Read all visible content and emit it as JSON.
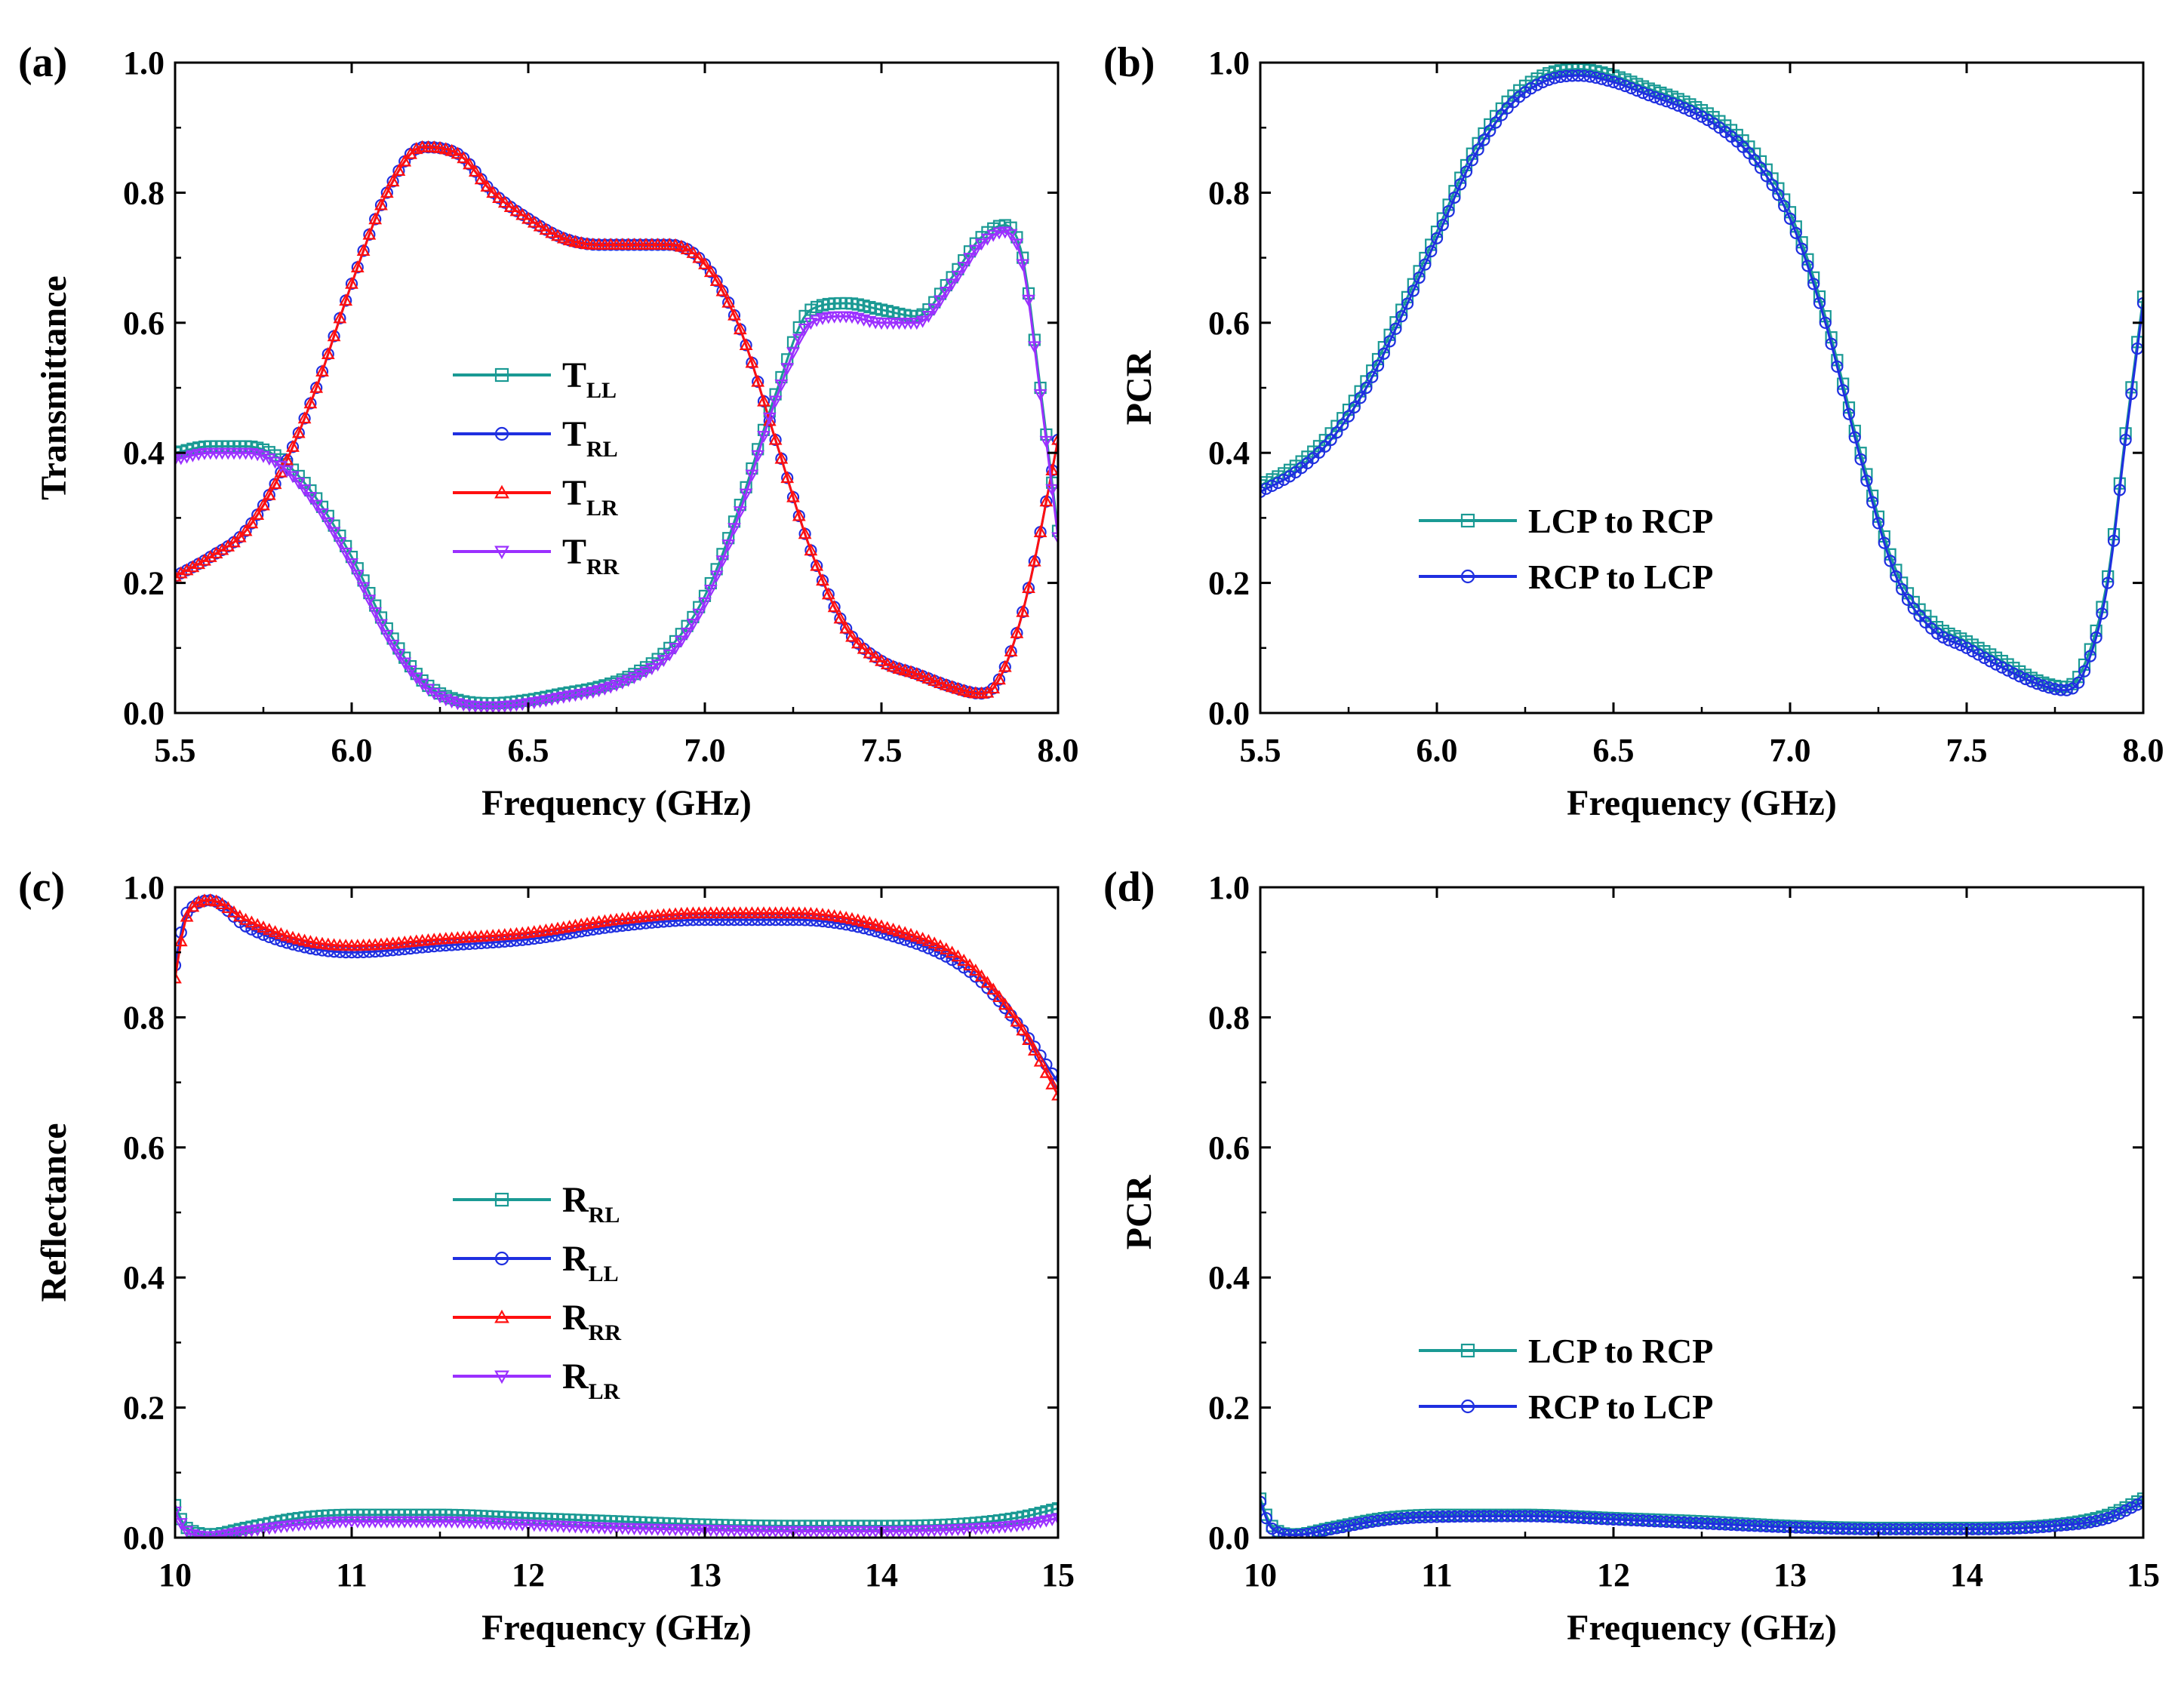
{
  "figure": {
    "panels": [
      "(a)",
      "(b)",
      "(c)",
      "(d)"
    ]
  },
  "chart_data": [
    {
      "id": "a",
      "panel_label": "(a)",
      "type": "line",
      "xlabel": "Frequency (GHz)",
      "ylabel": "Transmittance",
      "xlim": [
        5.5,
        8.0
      ],
      "ylim": [
        0.0,
        1.0
      ],
      "xticks": [
        "5.5",
        "6.0",
        "6.5",
        "7.0",
        "7.5",
        "8.0"
      ],
      "yticks": [
        "0.0",
        "0.2",
        "0.4",
        "0.6",
        "0.8",
        "1.0"
      ],
      "legend_position": "center",
      "series": [
        {
          "name": "T",
          "sub": "LL",
          "color": "#1a9a94",
          "marker": "square",
          "x": [
            5.5,
            5.6,
            5.7,
            5.8,
            5.9,
            6.0,
            6.1,
            6.2,
            6.3,
            6.4,
            6.5,
            6.6,
            6.7,
            6.8,
            6.9,
            7.0,
            7.1,
            7.2,
            7.3,
            7.4,
            7.5,
            7.6,
            7.7,
            7.78,
            7.85,
            7.9,
            7.95,
            8.0
          ],
          "y": [
            0.4,
            0.41,
            0.41,
            0.39,
            0.33,
            0.24,
            0.13,
            0.05,
            0.02,
            0.015,
            0.02,
            0.03,
            0.04,
            0.06,
            0.1,
            0.18,
            0.32,
            0.49,
            0.62,
            0.63,
            0.62,
            0.61,
            0.67,
            0.73,
            0.75,
            0.7,
            0.5,
            0.28
          ]
        },
        {
          "name": "T",
          "sub": "RL",
          "color": "#1f2fe0",
          "marker": "circle",
          "x": [
            5.5,
            5.6,
            5.7,
            5.8,
            5.9,
            6.0,
            6.1,
            6.2,
            6.3,
            6.4,
            6.5,
            6.6,
            6.7,
            6.8,
            6.9,
            7.0,
            7.1,
            7.2,
            7.3,
            7.4,
            7.5,
            7.6,
            7.7,
            7.78,
            7.82,
            7.87,
            7.92,
            8.0
          ],
          "y": [
            0.21,
            0.24,
            0.28,
            0.37,
            0.5,
            0.66,
            0.8,
            0.87,
            0.86,
            0.8,
            0.76,
            0.73,
            0.72,
            0.72,
            0.72,
            0.69,
            0.59,
            0.42,
            0.25,
            0.13,
            0.08,
            0.06,
            0.04,
            0.03,
            0.04,
            0.1,
            0.2,
            0.42
          ]
        },
        {
          "name": "T",
          "sub": "LR",
          "color": "#ff1010",
          "marker": "triangle-up",
          "x": [
            5.5,
            5.6,
            5.7,
            5.8,
            5.9,
            6.0,
            6.1,
            6.2,
            6.3,
            6.4,
            6.5,
            6.6,
            6.7,
            6.8,
            6.9,
            7.0,
            7.1,
            7.2,
            7.3,
            7.4,
            7.5,
            7.6,
            7.7,
            7.78,
            7.82,
            7.87,
            7.92,
            8.0
          ],
          "y": [
            0.21,
            0.24,
            0.28,
            0.37,
            0.5,
            0.66,
            0.8,
            0.87,
            0.86,
            0.8,
            0.76,
            0.73,
            0.72,
            0.72,
            0.72,
            0.69,
            0.59,
            0.42,
            0.25,
            0.13,
            0.08,
            0.06,
            0.04,
            0.03,
            0.04,
            0.1,
            0.2,
            0.42
          ]
        },
        {
          "name": "T",
          "sub": "RR",
          "color": "#9b30ff",
          "marker": "triangle-down",
          "x": [
            5.5,
            5.6,
            5.7,
            5.8,
            5.9,
            6.0,
            6.1,
            6.2,
            6.3,
            6.4,
            6.5,
            6.6,
            6.7,
            6.8,
            6.9,
            7.0,
            7.1,
            7.2,
            7.3,
            7.4,
            7.5,
            7.6,
            7.7,
            7.78,
            7.85,
            7.9,
            7.95,
            8.0
          ],
          "y": [
            0.39,
            0.4,
            0.4,
            0.38,
            0.32,
            0.23,
            0.12,
            0.045,
            0.015,
            0.01,
            0.015,
            0.025,
            0.035,
            0.055,
            0.09,
            0.17,
            0.31,
            0.48,
            0.6,
            0.61,
            0.6,
            0.6,
            0.66,
            0.72,
            0.74,
            0.69,
            0.49,
            0.27
          ]
        }
      ]
    },
    {
      "id": "b",
      "panel_label": "(b)",
      "type": "line",
      "xlabel": "Frequency (GHz)",
      "ylabel": "PCR",
      "xlim": [
        5.5,
        8.0
      ],
      "ylim": [
        0.0,
        1.0
      ],
      "xticks": [
        "5.5",
        "6.0",
        "6.5",
        "7.0",
        "7.5",
        "8.0"
      ],
      "yticks": [
        "0.0",
        "0.2",
        "0.4",
        "0.6",
        "0.8",
        "1.0"
      ],
      "legend_position": "center-bottom",
      "series": [
        {
          "name": "LCP to RCP",
          "color": "#1a9a94",
          "marker": "square",
          "x": [
            5.5,
            5.6,
            5.7,
            5.8,
            5.9,
            6.0,
            6.1,
            6.2,
            6.3,
            6.4,
            6.5,
            6.6,
            6.7,
            6.8,
            6.9,
            7.0,
            7.1,
            7.2,
            7.3,
            7.4,
            7.5,
            7.6,
            7.7,
            7.78,
            7.83,
            7.9,
            7.95,
            8.0
          ],
          "y": [
            0.35,
            0.38,
            0.43,
            0.51,
            0.62,
            0.74,
            0.86,
            0.94,
            0.98,
            0.99,
            0.98,
            0.96,
            0.94,
            0.91,
            0.86,
            0.77,
            0.61,
            0.4,
            0.22,
            0.14,
            0.11,
            0.08,
            0.05,
            0.04,
            0.07,
            0.21,
            0.43,
            0.64
          ]
        },
        {
          "name": "RCP to LCP",
          "color": "#1f2fe0",
          "marker": "circle",
          "x": [
            5.5,
            5.6,
            5.7,
            5.8,
            5.9,
            6.0,
            6.1,
            6.2,
            6.3,
            6.4,
            6.5,
            6.6,
            6.7,
            6.8,
            6.9,
            7.0,
            7.1,
            7.2,
            7.3,
            7.4,
            7.5,
            7.6,
            7.7,
            7.78,
            7.83,
            7.9,
            7.95,
            8.0
          ],
          "y": [
            0.34,
            0.37,
            0.42,
            0.5,
            0.61,
            0.73,
            0.85,
            0.93,
            0.97,
            0.98,
            0.97,
            0.95,
            0.93,
            0.9,
            0.85,
            0.76,
            0.6,
            0.39,
            0.21,
            0.13,
            0.1,
            0.07,
            0.045,
            0.035,
            0.06,
            0.2,
            0.42,
            0.63
          ]
        }
      ]
    },
    {
      "id": "c",
      "panel_label": "(c)",
      "type": "line",
      "xlabel": "Frequency (GHz)",
      "ylabel": "Reflectance",
      "xlim": [
        10,
        15
      ],
      "ylim": [
        0.0,
        1.0
      ],
      "xticks": [
        "10",
        "11",
        "12",
        "13",
        "14",
        "15"
      ],
      "yticks": [
        "0.0",
        "0.2",
        "0.4",
        "0.6",
        "0.8",
        "1.0"
      ],
      "legend_position": "center",
      "series": [
        {
          "name": "R",
          "sub": "RL",
          "color": "#1a9a94",
          "marker": "square",
          "x": [
            10,
            10.05,
            10.1,
            10.2,
            10.4,
            10.7,
            11,
            11.5,
            12,
            12.5,
            13,
            13.5,
            14,
            14.5,
            14.8,
            15
          ],
          "y": [
            0.05,
            0.02,
            0.01,
            0.005,
            0.015,
            0.03,
            0.035,
            0.035,
            0.03,
            0.025,
            0.02,
            0.018,
            0.018,
            0.022,
            0.032,
            0.045
          ]
        },
        {
          "name": "R",
          "sub": "LL",
          "color": "#1f2fe0",
          "marker": "circle",
          "x": [
            10,
            10.05,
            10.1,
            10.2,
            10.4,
            10.7,
            11,
            11.5,
            12,
            12.5,
            13,
            13.5,
            14,
            14.5,
            14.8,
            15
          ],
          "y": [
            0.88,
            0.95,
            0.97,
            0.98,
            0.94,
            0.91,
            0.9,
            0.91,
            0.92,
            0.94,
            0.95,
            0.95,
            0.93,
            0.87,
            0.78,
            0.7
          ]
        },
        {
          "name": "R",
          "sub": "RR",
          "color": "#ff1010",
          "marker": "triangle-up",
          "x": [
            10,
            10.05,
            10.1,
            10.2,
            10.4,
            10.7,
            11,
            11.5,
            12,
            12.5,
            13,
            13.5,
            14,
            14.5,
            14.8,
            15
          ],
          "y": [
            0.86,
            0.94,
            0.97,
            0.98,
            0.95,
            0.92,
            0.91,
            0.92,
            0.93,
            0.95,
            0.96,
            0.96,
            0.94,
            0.88,
            0.78,
            0.68
          ]
        },
        {
          "name": "R",
          "sub": "LR",
          "color": "#9b30ff",
          "marker": "triangle-down",
          "x": [
            10,
            10.05,
            10.1,
            10.2,
            10.4,
            10.7,
            11,
            11.5,
            12,
            12.5,
            13,
            13.5,
            14,
            14.5,
            14.8,
            15
          ],
          "y": [
            0.04,
            0.015,
            0.005,
            0.002,
            0.01,
            0.02,
            0.025,
            0.025,
            0.02,
            0.015,
            0.012,
            0.01,
            0.01,
            0.014,
            0.02,
            0.03
          ]
        }
      ]
    },
    {
      "id": "d",
      "panel_label": "(d)",
      "type": "line",
      "xlabel": "Frequency (GHz)",
      "ylabel": "PCR",
      "xlim": [
        10,
        15
      ],
      "ylim": [
        0.0,
        1.0
      ],
      "xticks": [
        "10",
        "11",
        "12",
        "13",
        "14",
        "15"
      ],
      "yticks": [
        "0.0",
        "0.2",
        "0.4",
        "0.6",
        "0.8",
        "1.0"
      ],
      "legend_position": "center-bottom",
      "series": [
        {
          "name": "LCP to RCP",
          "color": "#1a9a94",
          "marker": "square",
          "x": [
            10,
            10.05,
            10.1,
            10.2,
            10.4,
            10.7,
            11,
            11.5,
            12,
            12.5,
            13,
            13.5,
            14,
            14.5,
            14.8,
            15
          ],
          "y": [
            0.06,
            0.025,
            0.01,
            0.005,
            0.015,
            0.03,
            0.035,
            0.035,
            0.03,
            0.025,
            0.018,
            0.015,
            0.015,
            0.02,
            0.035,
            0.06
          ]
        },
        {
          "name": "RCP to LCP",
          "color": "#1f2fe0",
          "marker": "circle",
          "x": [
            10,
            10.05,
            10.1,
            10.2,
            10.4,
            10.7,
            11,
            11.5,
            12,
            12.5,
            13,
            13.5,
            14,
            14.5,
            14.8,
            15
          ],
          "y": [
            0.055,
            0.02,
            0.008,
            0.004,
            0.013,
            0.027,
            0.032,
            0.033,
            0.028,
            0.022,
            0.016,
            0.013,
            0.013,
            0.018,
            0.03,
            0.055
          ]
        }
      ]
    }
  ]
}
